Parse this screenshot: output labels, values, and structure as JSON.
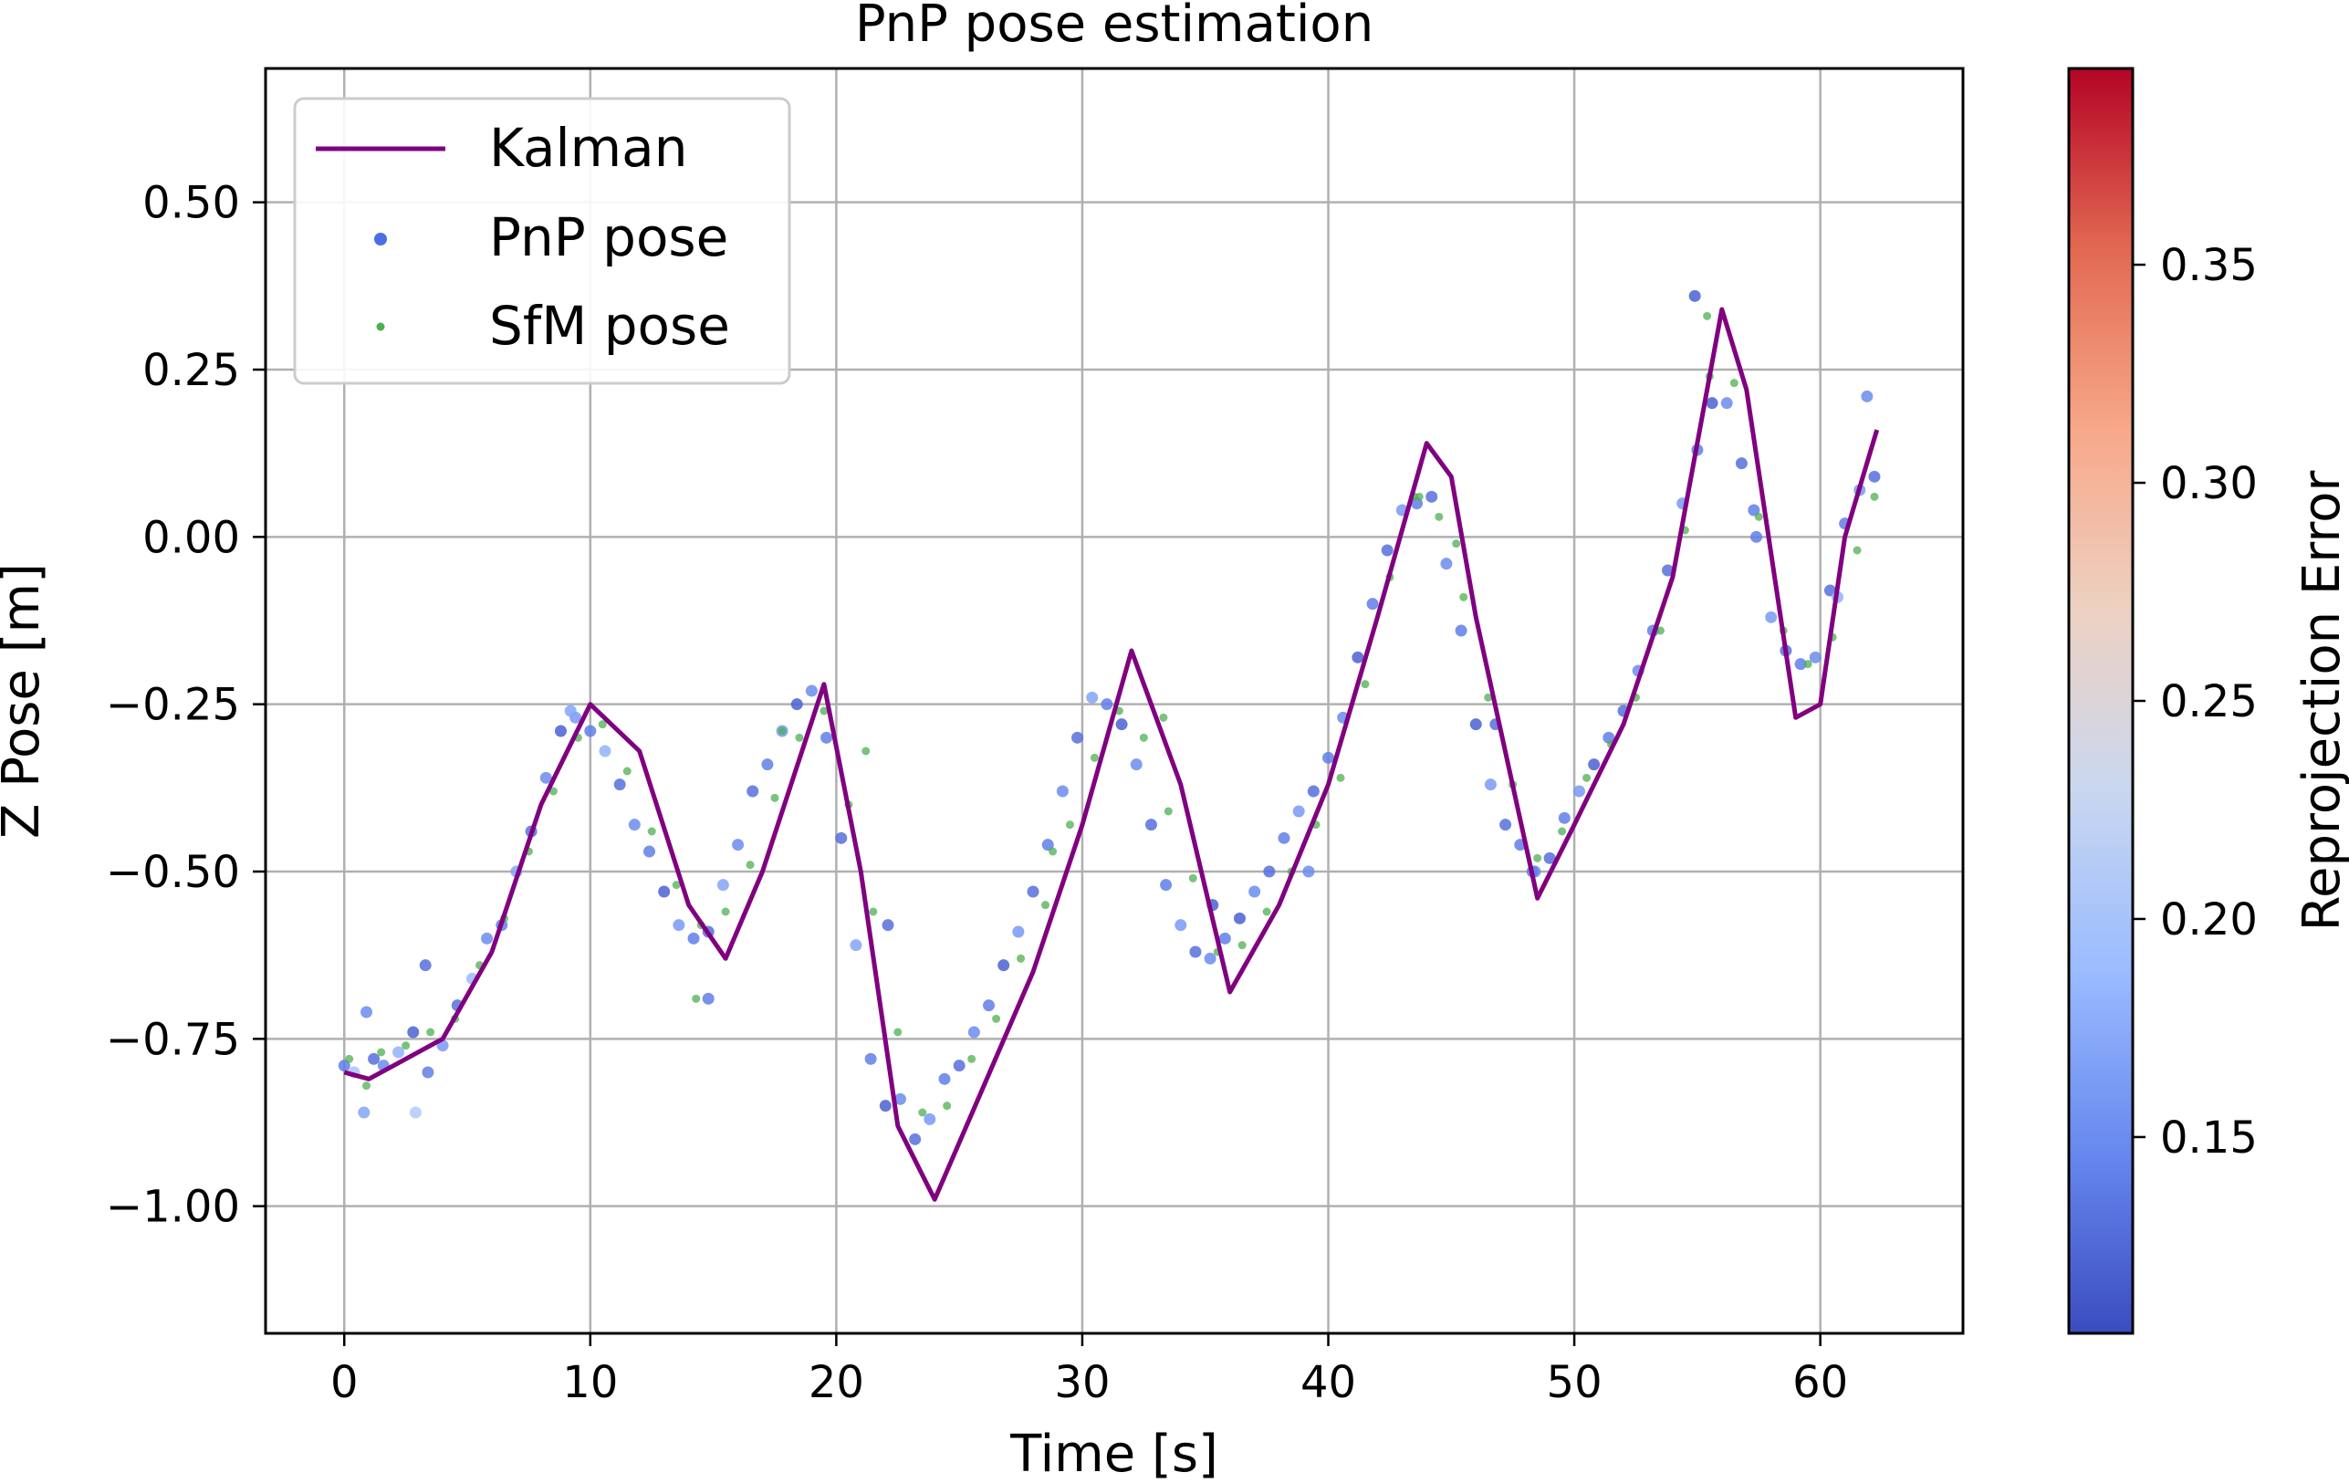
{
  "chart_data": {
    "type": "scatter",
    "title": "PnP pose estimation",
    "xlabel": "Time [s]",
    "ylabel": "Z Pose [m]",
    "xlim": [
      -3.2,
      65.8
    ],
    "ylim": [
      -1.19,
      0.7
    ],
    "xticks": [
      0,
      10,
      20,
      30,
      40,
      50,
      60
    ],
    "xtick_labels": [
      "0",
      "10",
      "20",
      "30",
      "40",
      "50",
      "60"
    ],
    "yticks": [
      0.5,
      0.25,
      0.0,
      -0.25,
      -0.5,
      -0.75,
      -1.0
    ],
    "ytick_labels": [
      "0.50",
      "0.25",
      "0.00",
      "−0.25",
      "−0.50",
      "−0.75",
      "−1.00"
    ],
    "grid": true,
    "legend": {
      "position": "top-left",
      "entries": [
        {
          "label": "Kalman",
          "kind": "line",
          "color": "#800080"
        },
        {
          "label": "PnP pose",
          "kind": "dot",
          "color": "#4a6fe3"
        },
        {
          "label": "SfM pose",
          "kind": "dot-small",
          "color": "#4caf50"
        }
      ]
    },
    "colorbar": {
      "label": "Reprojection Error",
      "range": [
        0.105,
        0.395
      ],
      "ticks": [
        0.15,
        0.2,
        0.25,
        0.3,
        0.35
      ],
      "tick_labels": [
        "0.15",
        "0.20",
        "0.25",
        "0.30",
        "0.35"
      ],
      "colormap": [
        "#3b4cc0",
        "#6788ee",
        "#9abbff",
        "#c9d7f0",
        "#edd1c2",
        "#f7a889",
        "#e26952",
        "#b40426"
      ]
    },
    "kalman": {
      "name": "Kalman",
      "color": "#800080",
      "x": [
        0,
        1,
        2,
        4,
        6,
        8,
        10,
        12,
        14,
        15.5,
        17,
        19.5,
        21,
        22.5,
        24,
        26,
        28,
        30,
        32,
        34,
        36,
        38,
        40,
        42,
        44,
        45,
        46,
        48.5,
        50,
        52,
        54,
        56,
        57,
        59,
        60,
        61,
        62.3
      ],
      "y": [
        -0.8,
        -0.81,
        -0.79,
        -0.75,
        -0.62,
        -0.4,
        -0.25,
        -0.32,
        -0.55,
        -0.63,
        -0.5,
        -0.22,
        -0.5,
        -0.88,
        -0.99,
        -0.82,
        -0.65,
        -0.43,
        -0.17,
        -0.37,
        -0.68,
        -0.55,
        -0.37,
        -0.12,
        0.14,
        0.09,
        -0.12,
        -0.54,
        -0.43,
        -0.28,
        -0.06,
        0.34,
        0.22,
        -0.27,
        -0.25,
        0.0,
        0.16
      ]
    },
    "pnp_pose": {
      "name": "PnP pose",
      "x": [
        0,
        0.4,
        0.8,
        1.2,
        1.6,
        2.2,
        2.8,
        3.4,
        4,
        4.6,
        5.2,
        5.8,
        6.4,
        7,
        7.6,
        8.2,
        8.8,
        9.4,
        10,
        10.6,
        11.2,
        11.8,
        12.4,
        13,
        13.6,
        14.2,
        14.8,
        15.4,
        16,
        16.6,
        17.2,
        17.8,
        18.4,
        19,
        19.6,
        20.2,
        20.8,
        21.4,
        22,
        22.6,
        23.2,
        23.8,
        24.4,
        25,
        25.6,
        26.2,
        26.8,
        27.4,
        28,
        28.6,
        29.2,
        29.8,
        30.4,
        31,
        31.6,
        32.2,
        32.8,
        33.4,
        34,
        34.6,
        35.2,
        35.8,
        36.4,
        37,
        37.6,
        38.2,
        38.8,
        39.4,
        40,
        40.6,
        41.2,
        41.8,
        42.4,
        43,
        43.6,
        44.2,
        44.8,
        45.4,
        46,
        46.6,
        47.2,
        47.8,
        48.4,
        49,
        49.6,
        50.2,
        50.8,
        51.4,
        52,
        52.6,
        53.2,
        53.8,
        54.4,
        55,
        55.6,
        56.2,
        56.8,
        57.4,
        58,
        58.6,
        59.2,
        59.8,
        60.4,
        61,
        61.6,
        62.2,
        0.9,
        2.9,
        3.3,
        9.2,
        14.8,
        22.1,
        35.3,
        39.2,
        46.8,
        48.3,
        54.9,
        57.3,
        60.7,
        61.9
      ],
      "y": [
        -0.79,
        -0.8,
        -0.86,
        -0.78,
        -0.79,
        -0.77,
        -0.74,
        -0.8,
        -0.76,
        -0.7,
        -0.66,
        -0.6,
        -0.58,
        -0.5,
        -0.44,
        -0.36,
        -0.29,
        -0.27,
        -0.29,
        -0.32,
        -0.37,
        -0.43,
        -0.47,
        -0.53,
        -0.58,
        -0.6,
        -0.59,
        -0.52,
        -0.46,
        -0.38,
        -0.34,
        -0.29,
        -0.25,
        -0.23,
        -0.3,
        -0.45,
        -0.61,
        -0.78,
        -0.85,
        -0.84,
        -0.9,
        -0.87,
        -0.81,
        -0.79,
        -0.74,
        -0.7,
        -0.64,
        -0.59,
        -0.53,
        -0.46,
        -0.38,
        -0.3,
        -0.24,
        -0.25,
        -0.28,
        -0.34,
        -0.43,
        -0.52,
        -0.58,
        -0.62,
        -0.63,
        -0.6,
        -0.57,
        -0.53,
        -0.5,
        -0.45,
        -0.41,
        -0.38,
        -0.33,
        -0.27,
        -0.18,
        -0.1,
        -0.02,
        0.04,
        0.05,
        0.06,
        -0.04,
        -0.14,
        -0.28,
        -0.37,
        -0.43,
        -0.46,
        -0.5,
        -0.48,
        -0.42,
        -0.38,
        -0.34,
        -0.3,
        -0.26,
        -0.2,
        -0.14,
        -0.05,
        0.05,
        0.13,
        0.2,
        0.2,
        0.11,
        0.0,
        -0.12,
        -0.17,
        -0.19,
        -0.18,
        -0.08,
        0.02,
        0.07,
        0.09,
        -0.71,
        -0.86,
        -0.64,
        -0.26,
        -0.69,
        -0.58,
        -0.55,
        -0.5,
        -0.28,
        -0.5,
        0.36,
        0.04,
        -0.09,
        0.21
      ],
      "error": [
        0.14,
        0.2,
        0.17,
        0.13,
        0.15,
        0.18,
        0.12,
        0.14,
        0.16,
        0.13,
        0.19,
        0.15,
        0.14,
        0.17,
        0.13,
        0.15,
        0.12,
        0.16,
        0.14,
        0.18,
        0.13,
        0.15,
        0.14,
        0.12,
        0.16,
        0.14,
        0.13,
        0.17,
        0.15,
        0.13,
        0.14,
        0.16,
        0.12,
        0.15,
        0.14,
        0.13,
        0.17,
        0.14,
        0.12,
        0.15,
        0.13,
        0.16,
        0.14,
        0.13,
        0.15,
        0.14,
        0.12,
        0.16,
        0.13,
        0.14,
        0.15,
        0.13,
        0.17,
        0.14,
        0.12,
        0.15,
        0.13,
        0.14,
        0.16,
        0.13,
        0.15,
        0.14,
        0.12,
        0.15,
        0.13,
        0.14,
        0.16,
        0.13,
        0.14,
        0.15,
        0.12,
        0.14,
        0.13,
        0.16,
        0.14,
        0.13,
        0.15,
        0.14,
        0.12,
        0.16,
        0.13,
        0.14,
        0.15,
        0.13,
        0.14,
        0.16,
        0.12,
        0.14,
        0.13,
        0.15,
        0.14,
        0.13,
        0.16,
        0.14,
        0.12,
        0.15,
        0.13,
        0.14,
        0.16,
        0.13,
        0.14,
        0.15,
        0.13,
        0.14,
        0.16,
        0.13,
        0.15,
        0.21,
        0.13,
        0.17,
        0.14,
        0.13,
        0.12,
        0.15,
        0.13,
        0.14,
        0.12,
        0.14,
        0.18,
        0.15
      ]
    },
    "sfm_pose": {
      "name": "SfM pose",
      "color": "#4caf50",
      "x": [
        0.2,
        0.9,
        1.5,
        2.5,
        3.5,
        4.5,
        5.5,
        6.5,
        7.5,
        8.5,
        9.5,
        10.5,
        11.5,
        12.5,
        13.5,
        14.5,
        15.5,
        16.5,
        17.5,
        18.5,
        19.5,
        20.5,
        21.5,
        22.5,
        23.5,
        24.5,
        25.5,
        26.5,
        27.5,
        28.5,
        29.5,
        30.5,
        31.5,
        32.5,
        33.5,
        34.5,
        35.5,
        36.5,
        37.5,
        38.5,
        39.5,
        40.5,
        41.5,
        42.5,
        43.5,
        44.5,
        45.5,
        46.5,
        47.5,
        48.5,
        49.5,
        50.5,
        51.5,
        52.5,
        53.5,
        54.5,
        55.5,
        56.5,
        57.5,
        58.5,
        59.5,
        60.5,
        61.5,
        62.2,
        14.3,
        17.8,
        21.2,
        28.8,
        33.3,
        43.7,
        45.2,
        55.4
      ],
      "y": [
        -0.78,
        -0.82,
        -0.77,
        -0.76,
        -0.74,
        -0.72,
        -0.64,
        -0.57,
        -0.47,
        -0.38,
        -0.3,
        -0.28,
        -0.35,
        -0.44,
        -0.52,
        -0.58,
        -0.56,
        -0.49,
        -0.39,
        -0.3,
        -0.26,
        -0.4,
        -0.56,
        -0.74,
        -0.86,
        -0.85,
        -0.78,
        -0.72,
        -0.63,
        -0.55,
        -0.43,
        -0.33,
        -0.26,
        -0.3,
        -0.41,
        -0.51,
        -0.62,
        -0.61,
        -0.56,
        -0.5,
        -0.43,
        -0.36,
        -0.22,
        -0.06,
        0.06,
        0.03,
        -0.09,
        -0.24,
        -0.37,
        -0.48,
        -0.44,
        -0.36,
        -0.31,
        -0.24,
        -0.14,
        0.01,
        0.24,
        0.23,
        0.03,
        -0.14,
        -0.19,
        -0.15,
        -0.02,
        0.06,
        -0.69,
        -0.29,
        -0.32,
        -0.47,
        -0.27,
        0.06,
        -0.01,
        0.33
      ]
    }
  }
}
